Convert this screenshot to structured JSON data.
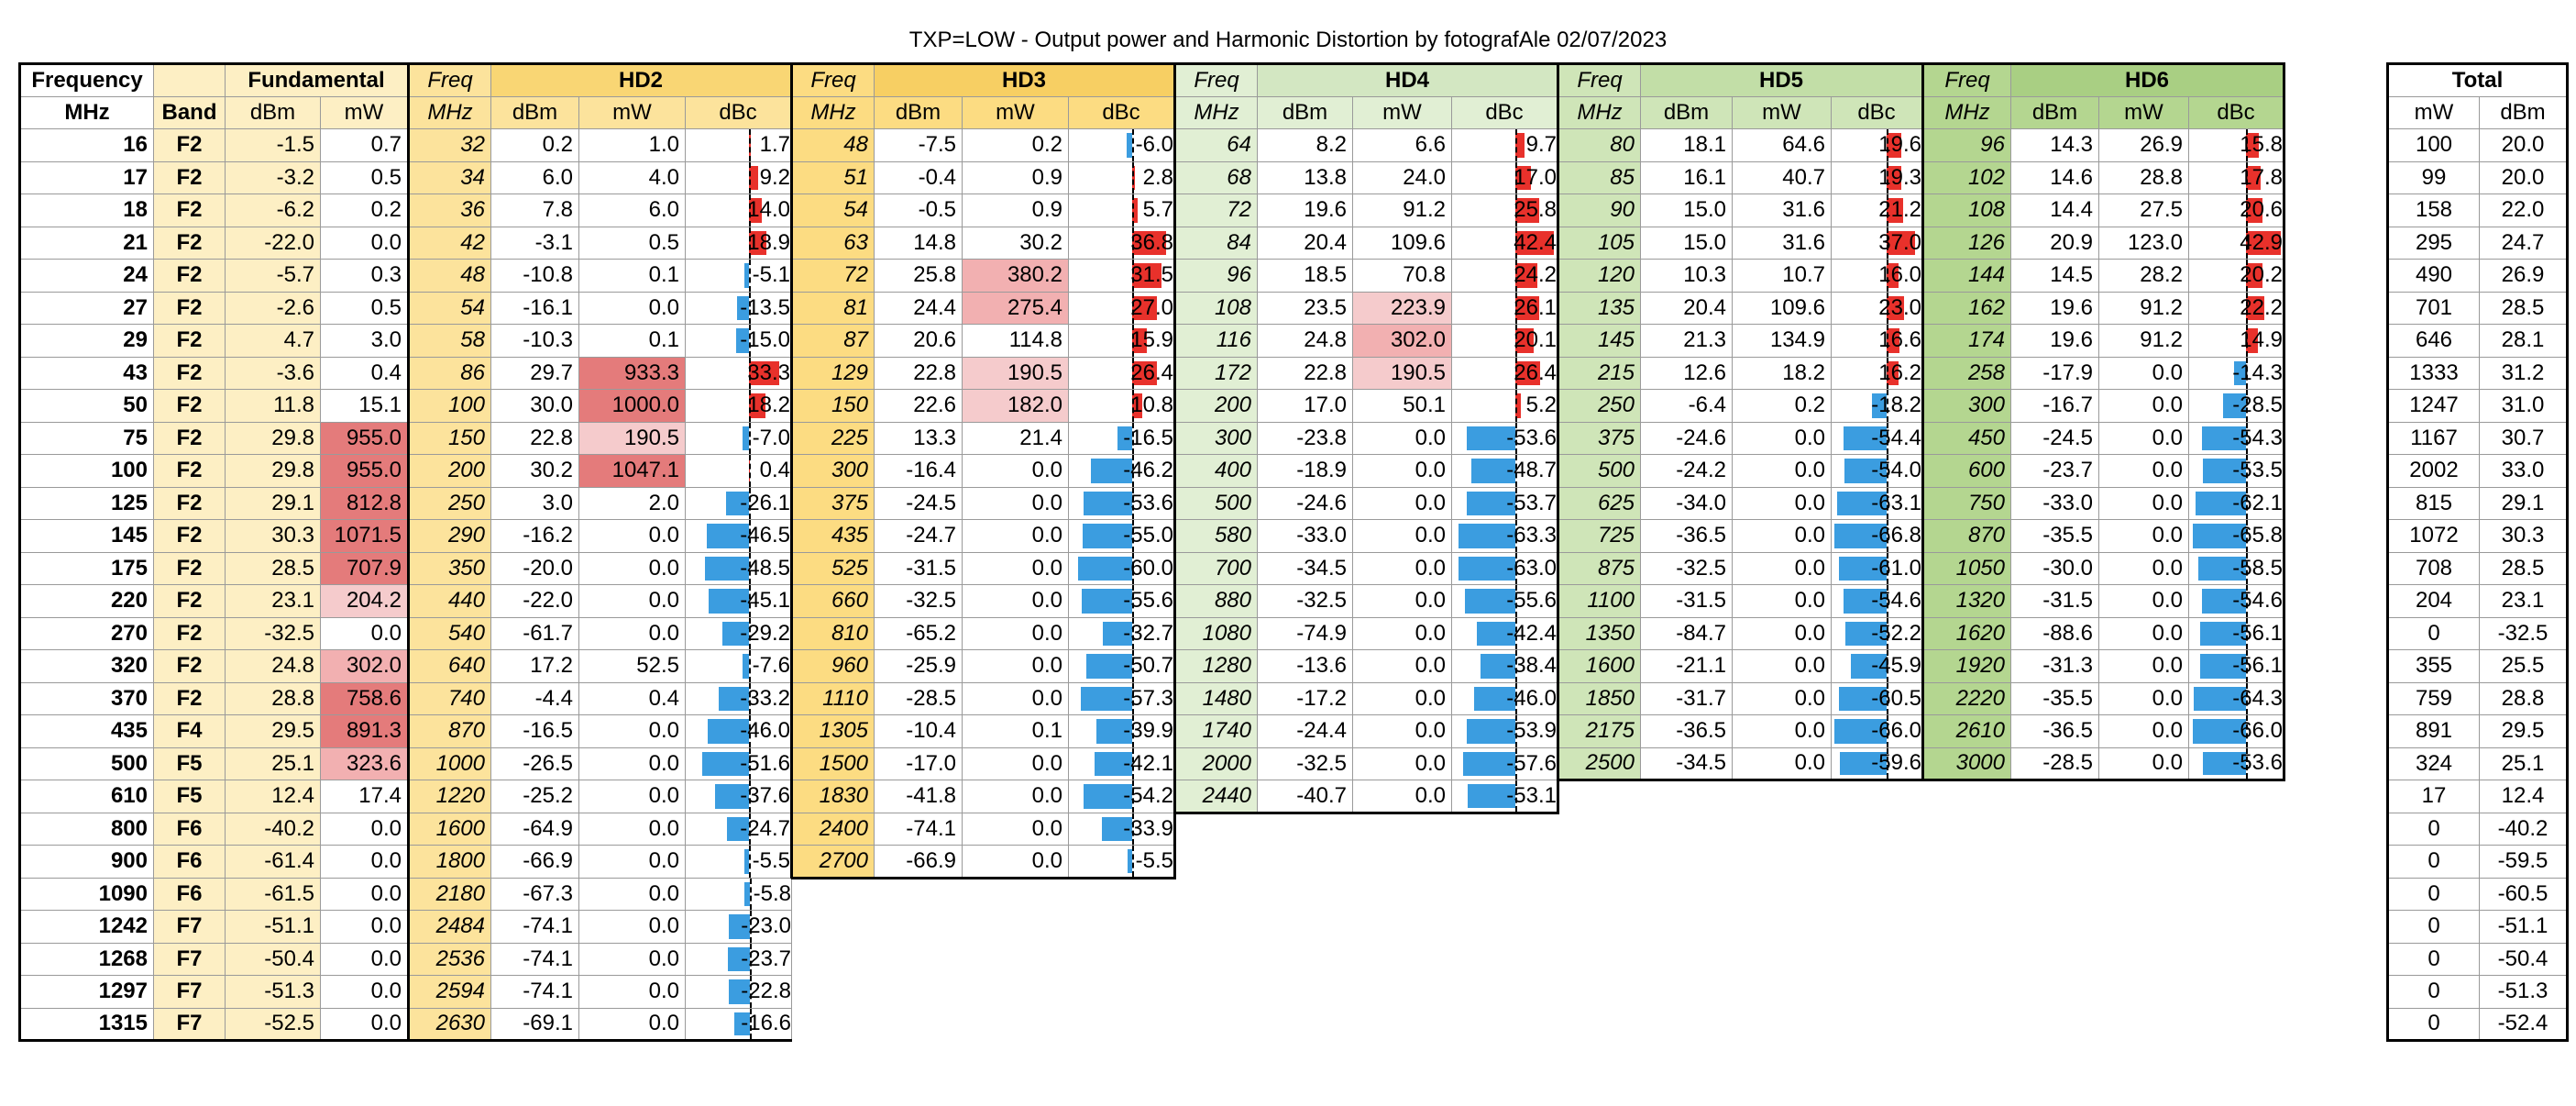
{
  "title": "TXP=LOW  - Output power and Harmonic Distortion by fotografAle 02/07/2023",
  "colors": {
    "fund": "#fdefc4",
    "fund_hdr": "#fce49a",
    "hd2": "#fce39c",
    "hd2_hdr": "#f9d674",
    "hd3": "#fcdc82",
    "hd3_hdr": "#f7cf63",
    "hd4": "#e1efd4",
    "hd4_hdr": "#d3e7c2",
    "hd5": "#cfe5b8",
    "hd5_hdr": "#c2dea7",
    "hd6": "#b4d690",
    "hd6_hdr": "#a9cf83",
    "white": "#ffffff",
    "mw_pink": "#f5cbcc",
    "mw_pink2": "#f2b0b1",
    "mw_red": "#e47b7b",
    "bar_pos": "#e8312b",
    "bar_neg": "#3b9de0"
  },
  "headers": {
    "frequency": "Frequency",
    "band": "Band",
    "fundamental": "Fundamental",
    "freq": "Freq",
    "hd2": "HD2",
    "hd3": "HD3",
    "hd4": "HD4",
    "hd5": "HD5",
    "hd6": "HD6",
    "mhz": "MHz",
    "dbm": "dBm",
    "mw": "mW",
    "dbc": "dBc",
    "total": "Total"
  },
  "dbc_range": [
    -70,
    45
  ],
  "rows": [
    {
      "f": "16",
      "band": "F2",
      "fund": [
        "-1.5",
        "0.7"
      ],
      "hd2": [
        "32",
        "0.2",
        "1.0",
        "1.7"
      ],
      "hd3": [
        "48",
        "-7.5",
        "0.2",
        "-6.0"
      ],
      "hd4": [
        "64",
        "8.2",
        "6.6",
        "9.7"
      ],
      "hd5": [
        "80",
        "18.1",
        "64.6",
        "19.6"
      ],
      "hd6": [
        "96",
        "14.3",
        "26.9",
        "15.8"
      ],
      "total": [
        "100",
        "20.0"
      ]
    },
    {
      "f": "17",
      "band": "F2",
      "fund": [
        "-3.2",
        "0.5"
      ],
      "hd2": [
        "34",
        "6.0",
        "4.0",
        "9.2"
      ],
      "hd3": [
        "51",
        "-0.4",
        "0.9",
        "2.8"
      ],
      "hd4": [
        "68",
        "13.8",
        "24.0",
        "17.0"
      ],
      "hd5": [
        "85",
        "16.1",
        "40.7",
        "19.3"
      ],
      "hd6": [
        "102",
        "14.6",
        "28.8",
        "17.8"
      ],
      "total": [
        "99",
        "20.0"
      ]
    },
    {
      "f": "18",
      "band": "F2",
      "fund": [
        "-6.2",
        "0.2"
      ],
      "hd2": [
        "36",
        "7.8",
        "6.0",
        "14.0"
      ],
      "hd3": [
        "54",
        "-0.5",
        "0.9",
        "5.7"
      ],
      "hd4": [
        "72",
        "19.6",
        "91.2",
        "25.8"
      ],
      "hd5": [
        "90",
        "15.0",
        "31.6",
        "21.2"
      ],
      "hd6": [
        "108",
        "14.4",
        "27.5",
        "20.6"
      ],
      "total": [
        "158",
        "22.0"
      ]
    },
    {
      "f": "21",
      "band": "F2",
      "fund": [
        "-22.0",
        "0.0"
      ],
      "hd2": [
        "42",
        "-3.1",
        "0.5",
        "18.9"
      ],
      "hd3": [
        "63",
        "14.8",
        "30.2",
        "36.8"
      ],
      "hd4": [
        "84",
        "20.4",
        "109.6",
        "42.4"
      ],
      "hd5": [
        "105",
        "15.0",
        "31.6",
        "37.0"
      ],
      "hd6": [
        "126",
        "20.9",
        "123.0",
        "42.9"
      ],
      "total": [
        "295",
        "24.7"
      ]
    },
    {
      "f": "24",
      "band": "F2",
      "fund": [
        "-5.7",
        "0.3"
      ],
      "hd2": [
        "48",
        "-10.8",
        "0.1",
        "-5.1"
      ],
      "hd3": [
        "72",
        "25.8",
        "380.2",
        "31.5"
      ],
      "hd4": [
        "96",
        "18.5",
        "70.8",
        "24.2"
      ],
      "hd5": [
        "120",
        "10.3",
        "10.7",
        "16.0"
      ],
      "hd6": [
        "144",
        "14.5",
        "28.2",
        "20.2"
      ],
      "total": [
        "490",
        "26.9"
      ]
    },
    {
      "f": "27",
      "band": "F2",
      "fund": [
        "-2.6",
        "0.5"
      ],
      "hd2": [
        "54",
        "-16.1",
        "0.0",
        "-13.5"
      ],
      "hd3": [
        "81",
        "24.4",
        "275.4",
        "27.0"
      ],
      "hd4": [
        "108",
        "23.5",
        "223.9",
        "26.1"
      ],
      "hd5": [
        "135",
        "20.4",
        "109.6",
        "23.0"
      ],
      "hd6": [
        "162",
        "19.6",
        "91.2",
        "22.2"
      ],
      "total": [
        "701",
        "28.5"
      ]
    },
    {
      "f": "29",
      "band": "F2",
      "fund": [
        "4.7",
        "3.0"
      ],
      "hd2": [
        "58",
        "-10.3",
        "0.1",
        "-15.0"
      ],
      "hd3": [
        "87",
        "20.6",
        "114.8",
        "15.9"
      ],
      "hd4": [
        "116",
        "24.8",
        "302.0",
        "20.1"
      ],
      "hd5": [
        "145",
        "21.3",
        "134.9",
        "16.6"
      ],
      "hd6": [
        "174",
        "19.6",
        "91.2",
        "14.9"
      ],
      "total": [
        "646",
        "28.1"
      ]
    },
    {
      "f": "43",
      "band": "F2",
      "fund": [
        "-3.6",
        "0.4"
      ],
      "hd2": [
        "86",
        "29.7",
        "933.3",
        "33.3"
      ],
      "hd3": [
        "129",
        "22.8",
        "190.5",
        "26.4"
      ],
      "hd4": [
        "172",
        "22.8",
        "190.5",
        "26.4"
      ],
      "hd5": [
        "215",
        "12.6",
        "18.2",
        "16.2"
      ],
      "hd6": [
        "258",
        "-17.9",
        "0.0",
        "-14.3"
      ],
      "total": [
        "1333",
        "31.2"
      ]
    },
    {
      "f": "50",
      "band": "F2",
      "fund": [
        "11.8",
        "15.1"
      ],
      "hd2": [
        "100",
        "30.0",
        "1000.0",
        "18.2"
      ],
      "hd3": [
        "150",
        "22.6",
        "182.0",
        "10.8"
      ],
      "hd4": [
        "200",
        "17.0",
        "50.1",
        "5.2"
      ],
      "hd5": [
        "250",
        "-6.4",
        "0.2",
        "-18.2"
      ],
      "hd6": [
        "300",
        "-16.7",
        "0.0",
        "-28.5"
      ],
      "total": [
        "1247",
        "31.0"
      ]
    },
    {
      "f": "75",
      "band": "F2",
      "fund": [
        "29.8",
        "955.0"
      ],
      "hd2": [
        "150",
        "22.8",
        "190.5",
        "-7.0"
      ],
      "hd3": [
        "225",
        "13.3",
        "21.4",
        "-16.5"
      ],
      "hd4": [
        "300",
        "-23.8",
        "0.0",
        "-53.6"
      ],
      "hd5": [
        "375",
        "-24.6",
        "0.0",
        "-54.4"
      ],
      "hd6": [
        "450",
        "-24.5",
        "0.0",
        "-54.3"
      ],
      "total": [
        "1167",
        "30.7"
      ]
    },
    {
      "f": "100",
      "band": "F2",
      "fund": [
        "29.8",
        "955.0"
      ],
      "hd2": [
        "200",
        "30.2",
        "1047.1",
        "0.4"
      ],
      "hd3": [
        "300",
        "-16.4",
        "0.0",
        "-46.2"
      ],
      "hd4": [
        "400",
        "-18.9",
        "0.0",
        "-48.7"
      ],
      "hd5": [
        "500",
        "-24.2",
        "0.0",
        "-54.0"
      ],
      "hd6": [
        "600",
        "-23.7",
        "0.0",
        "-53.5"
      ],
      "total": [
        "2002",
        "33.0"
      ]
    },
    {
      "f": "125",
      "band": "F2",
      "fund": [
        "29.1",
        "812.8"
      ],
      "hd2": [
        "250",
        "3.0",
        "2.0",
        "-26.1"
      ],
      "hd3": [
        "375",
        "-24.5",
        "0.0",
        "-53.6"
      ],
      "hd4": [
        "500",
        "-24.6",
        "0.0",
        "-53.7"
      ],
      "hd5": [
        "625",
        "-34.0",
        "0.0",
        "-63.1"
      ],
      "hd6": [
        "750",
        "-33.0",
        "0.0",
        "-62.1"
      ],
      "total": [
        "815",
        "29.1"
      ]
    },
    {
      "f": "145",
      "band": "F2",
      "fund": [
        "30.3",
        "1071.5"
      ],
      "hd2": [
        "290",
        "-16.2",
        "0.0",
        "-46.5"
      ],
      "hd3": [
        "435",
        "-24.7",
        "0.0",
        "-55.0"
      ],
      "hd4": [
        "580",
        "-33.0",
        "0.0",
        "-63.3"
      ],
      "hd5": [
        "725",
        "-36.5",
        "0.0",
        "-66.8"
      ],
      "hd6": [
        "870",
        "-35.5",
        "0.0",
        "-65.8"
      ],
      "total": [
        "1072",
        "30.3"
      ]
    },
    {
      "f": "175",
      "band": "F2",
      "fund": [
        "28.5",
        "707.9"
      ],
      "hd2": [
        "350",
        "-20.0",
        "0.0",
        "-48.5"
      ],
      "hd3": [
        "525",
        "-31.5",
        "0.0",
        "-60.0"
      ],
      "hd4": [
        "700",
        "-34.5",
        "0.0",
        "-63.0"
      ],
      "hd5": [
        "875",
        "-32.5",
        "0.0",
        "-61.0"
      ],
      "hd6": [
        "1050",
        "-30.0",
        "0.0",
        "-58.5"
      ],
      "total": [
        "708",
        "28.5"
      ]
    },
    {
      "f": "220",
      "band": "F2",
      "fund": [
        "23.1",
        "204.2"
      ],
      "hd2": [
        "440",
        "-22.0",
        "0.0",
        "-45.1"
      ],
      "hd3": [
        "660",
        "-32.5",
        "0.0",
        "-55.6"
      ],
      "hd4": [
        "880",
        "-32.5",
        "0.0",
        "-55.6"
      ],
      "hd5": [
        "1100",
        "-31.5",
        "0.0",
        "-54.6"
      ],
      "hd6": [
        "1320",
        "-31.5",
        "0.0",
        "-54.6"
      ],
      "total": [
        "204",
        "23.1"
      ]
    },
    {
      "f": "270",
      "band": "F2",
      "fund": [
        "-32.5",
        "0.0"
      ],
      "hd2": [
        "540",
        "-61.7",
        "0.0",
        "-29.2"
      ],
      "hd3": [
        "810",
        "-65.2",
        "0.0",
        "-32.7"
      ],
      "hd4": [
        "1080",
        "-74.9",
        "0.0",
        "-42.4"
      ],
      "hd5": [
        "1350",
        "-84.7",
        "0.0",
        "-52.2"
      ],
      "hd6": [
        "1620",
        "-88.6",
        "0.0",
        "-56.1"
      ],
      "total": [
        "0",
        "-32.5"
      ]
    },
    {
      "f": "320",
      "band": "F2",
      "fund": [
        "24.8",
        "302.0"
      ],
      "hd2": [
        "640",
        "17.2",
        "52.5",
        "-7.6"
      ],
      "hd3": [
        "960",
        "-25.9",
        "0.0",
        "-50.7"
      ],
      "hd4": [
        "1280",
        "-13.6",
        "0.0",
        "-38.4"
      ],
      "hd5": [
        "1600",
        "-21.1",
        "0.0",
        "-45.9"
      ],
      "hd6": [
        "1920",
        "-31.3",
        "0.0",
        "-56.1"
      ],
      "total": [
        "355",
        "25.5"
      ]
    },
    {
      "f": "370",
      "band": "F2",
      "fund": [
        "28.8",
        "758.6"
      ],
      "hd2": [
        "740",
        "-4.4",
        "0.4",
        "-33.2"
      ],
      "hd3": [
        "1110",
        "-28.5",
        "0.0",
        "-57.3"
      ],
      "hd4": [
        "1480",
        "-17.2",
        "0.0",
        "-46.0"
      ],
      "hd5": [
        "1850",
        "-31.7",
        "0.0",
        "-60.5"
      ],
      "hd6": [
        "2220",
        "-35.5",
        "0.0",
        "-64.3"
      ],
      "total": [
        "759",
        "28.8"
      ]
    },
    {
      "f": "435",
      "band": "F4",
      "fund": [
        "29.5",
        "891.3"
      ],
      "hd2": [
        "870",
        "-16.5",
        "0.0",
        "-46.0"
      ],
      "hd3": [
        "1305",
        "-10.4",
        "0.1",
        "-39.9"
      ],
      "hd4": [
        "1740",
        "-24.4",
        "0.0",
        "-53.9"
      ],
      "hd5": [
        "2175",
        "-36.5",
        "0.0",
        "-66.0"
      ],
      "hd6": [
        "2610",
        "-36.5",
        "0.0",
        "-66.0"
      ],
      "total": [
        "891",
        "29.5"
      ]
    },
    {
      "f": "500",
      "band": "F5",
      "fund": [
        "25.1",
        "323.6"
      ],
      "hd2": [
        "1000",
        "-26.5",
        "0.0",
        "-51.6"
      ],
      "hd3": [
        "1500",
        "-17.0",
        "0.0",
        "-42.1"
      ],
      "hd4": [
        "2000",
        "-32.5",
        "0.0",
        "-57.6"
      ],
      "hd5": [
        "2500",
        "-34.5",
        "0.0",
        "-59.6"
      ],
      "hd6": [
        "3000",
        "-28.5",
        "0.0",
        "-53.6"
      ],
      "total": [
        "324",
        "25.1"
      ]
    },
    {
      "f": "610",
      "band": "F5",
      "fund": [
        "12.4",
        "17.4"
      ],
      "hd2": [
        "1220",
        "-25.2",
        "0.0",
        "-37.6"
      ],
      "hd3": [
        "1830",
        "-41.8",
        "0.0",
        "-54.2"
      ],
      "hd4": [
        "2440",
        "-40.7",
        "0.0",
        "-53.1"
      ],
      "total": [
        "17",
        "12.4"
      ]
    },
    {
      "f": "800",
      "band": "F6",
      "fund": [
        "-40.2",
        "0.0"
      ],
      "hd2": [
        "1600",
        "-64.9",
        "0.0",
        "-24.7"
      ],
      "hd3": [
        "2400",
        "-74.1",
        "0.0",
        "-33.9"
      ],
      "total": [
        "0",
        "-40.2"
      ]
    },
    {
      "f": "900",
      "band": "F6",
      "fund": [
        "-61.4",
        "0.0"
      ],
      "hd2": [
        "1800",
        "-66.9",
        "0.0",
        "-5.5"
      ],
      "hd3": [
        "2700",
        "-66.9",
        "0.0",
        "-5.5"
      ],
      "total": [
        "0",
        "-59.5"
      ]
    },
    {
      "f": "1090",
      "band": "F6",
      "fund": [
        "-61.5",
        "0.0"
      ],
      "hd2": [
        "2180",
        "-67.3",
        "0.0",
        "-5.8"
      ],
      "total": [
        "0",
        "-60.5"
      ]
    },
    {
      "f": "1242",
      "band": "F7",
      "fund": [
        "-51.1",
        "0.0"
      ],
      "hd2": [
        "2484",
        "-74.1",
        "0.0",
        "-23.0"
      ],
      "total": [
        "0",
        "-51.1"
      ]
    },
    {
      "f": "1268",
      "band": "F7",
      "fund": [
        "-50.4",
        "0.0"
      ],
      "hd2": [
        "2536",
        "-74.1",
        "0.0",
        "-23.7"
      ],
      "total": [
        "0",
        "-50.4"
      ]
    },
    {
      "f": "1297",
      "band": "F7",
      "fund": [
        "-51.3",
        "0.0"
      ],
      "hd2": [
        "2594",
        "-74.1",
        "0.0",
        "-22.8"
      ],
      "total": [
        "0",
        "-51.3"
      ]
    },
    {
      "f": "1315",
      "band": "F7",
      "fund": [
        "-52.5",
        "0.0"
      ],
      "hd2": [
        "2630",
        "-69.1",
        "0.0",
        "-16.6"
      ],
      "total": [
        "0",
        "-52.4"
      ]
    }
  ]
}
